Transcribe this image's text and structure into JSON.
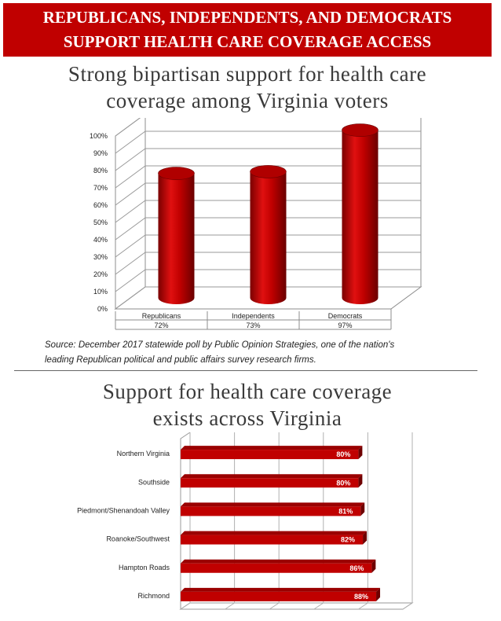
{
  "banner": {
    "line1": "REPUBLICANS, INDEPENDENTS, AND DEMOCRATS",
    "line2": "SUPPORT HEALTH CARE COVERAGE ACCESS"
  },
  "chart1_title": {
    "line1": "Strong bipartisan support for health care",
    "line2": "coverage among Virginia voters"
  },
  "source": {
    "line1": "Source: December 2017 statewide poll by Public Opinion Strategies, one of the nation's",
    "line2": "leading Republican political and public affairs survey research firms."
  },
  "chart2_title": {
    "line1": "Support for health care coverage",
    "line2": "exists across Virginia"
  },
  "colors": {
    "bar": "#c00000",
    "banner": "#c00000"
  },
  "chart_data": [
    {
      "type": "bar",
      "orientation": "vertical",
      "style": "3d-cylinder",
      "categories": [
        "Republicans",
        "Independents",
        "Democrats"
      ],
      "values": [
        72,
        73,
        97
      ],
      "value_labels": [
        "72%",
        "73%",
        "97%"
      ],
      "yticks": [
        "0%",
        "10%",
        "20%",
        "30%",
        "40%",
        "50%",
        "60%",
        "70%",
        "80%",
        "90%",
        "100%"
      ],
      "ylim": [
        0,
        100
      ],
      "grid": true,
      "data_table": true
    },
    {
      "type": "bar",
      "orientation": "horizontal",
      "style": "3d",
      "categories": [
        "Northern Virginia",
        "Southside",
        "Piedmont/Shenandoah Valley",
        "Roanoke/Southwest",
        "Hampton Roads",
        "Richmond"
      ],
      "values": [
        80,
        80,
        81,
        82,
        86,
        88
      ],
      "value_labels": [
        "80%",
        "80%",
        "81%",
        "82%",
        "86%",
        "88%"
      ],
      "grid": true
    }
  ]
}
